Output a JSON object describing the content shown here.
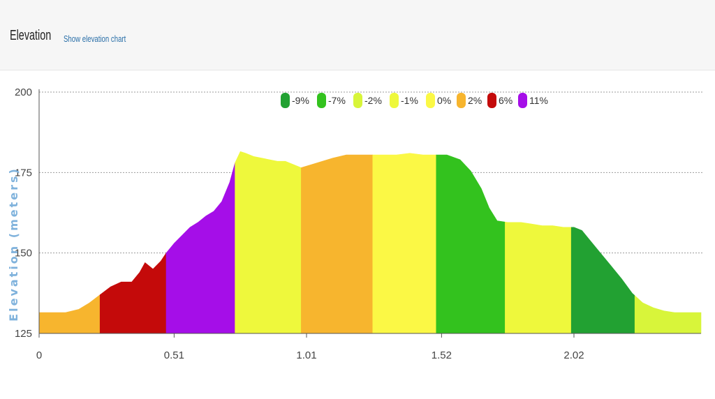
{
  "header": {
    "title": "Elevation",
    "show_chart_link": "Show elevation chart"
  },
  "chart_data": {
    "type": "area",
    "ylabel": "Elevation (meters)",
    "ylim": [
      125,
      200
    ],
    "yticks": [
      125,
      150,
      175,
      200
    ],
    "xlim": [
      0,
      2.5
    ],
    "xtick_labels": [
      "0",
      "0.51",
      "1.01",
      "1.52",
      "2.02"
    ],
    "xtick_values": [
      0,
      0.51,
      1.01,
      1.52,
      2.02
    ],
    "grid": true,
    "legend_position": "top-center",
    "legend": [
      {
        "label": "-9%",
        "color": "#22a132"
      },
      {
        "label": "-7%",
        "color": "#33c21e"
      },
      {
        "label": "-2%",
        "color": "#d8f53a"
      },
      {
        "label": "-1%",
        "color": "#eef83c"
      },
      {
        "label": "0%",
        "color": "#fbf845"
      },
      {
        "label": "2%",
        "color": "#f7b52e"
      },
      {
        "label": "6%",
        "color": "#c40a0a"
      },
      {
        "label": "11%",
        "color": "#a50ee8"
      }
    ],
    "profile": [
      [
        0.0,
        131.5
      ],
      [
        0.1,
        131.5
      ],
      [
        0.15,
        132.5
      ],
      [
        0.19,
        134.5
      ],
      [
        0.23,
        137
      ],
      [
        0.27,
        139.5
      ],
      [
        0.31,
        141
      ],
      [
        0.35,
        141
      ],
      [
        0.38,
        144
      ],
      [
        0.4,
        147
      ],
      [
        0.43,
        145
      ],
      [
        0.46,
        147.5
      ],
      [
        0.48,
        150
      ],
      [
        0.51,
        153
      ],
      [
        0.54,
        155.5
      ],
      [
        0.57,
        158
      ],
      [
        0.6,
        159.5
      ],
      [
        0.63,
        161.5
      ],
      [
        0.66,
        163
      ],
      [
        0.69,
        166
      ],
      [
        0.72,
        172
      ],
      [
        0.74,
        178
      ],
      [
        0.76,
        181.5
      ],
      [
        0.78,
        181
      ],
      [
        0.81,
        180
      ],
      [
        0.84,
        179.5
      ],
      [
        0.87,
        179
      ],
      [
        0.9,
        178.5
      ],
      [
        0.93,
        178.5
      ],
      [
        0.96,
        177.5
      ],
      [
        0.99,
        176.5
      ],
      [
        1.03,
        177.5
      ],
      [
        1.07,
        178.5
      ],
      [
        1.11,
        179.5
      ],
      [
        1.16,
        180.5
      ],
      [
        1.2,
        180.5
      ],
      [
        1.26,
        180.5
      ],
      [
        1.3,
        180.5
      ],
      [
        1.35,
        180.5
      ],
      [
        1.4,
        181
      ],
      [
        1.45,
        180.5
      ],
      [
        1.5,
        180.5
      ],
      [
        1.54,
        180.5
      ],
      [
        1.59,
        179
      ],
      [
        1.63,
        175.5
      ],
      [
        1.67,
        170
      ],
      [
        1.7,
        164
      ],
      [
        1.73,
        160
      ],
      [
        1.77,
        159.5
      ],
      [
        1.82,
        159.5
      ],
      [
        1.86,
        159
      ],
      [
        1.9,
        158.5
      ],
      [
        1.94,
        158.5
      ],
      [
        1.98,
        158
      ],
      [
        2.02,
        158
      ],
      [
        2.05,
        157
      ],
      [
        2.08,
        154
      ],
      [
        2.12,
        150
      ],
      [
        2.16,
        146
      ],
      [
        2.2,
        142
      ],
      [
        2.24,
        137.5
      ],
      [
        2.28,
        134.5
      ],
      [
        2.32,
        133
      ],
      [
        2.36,
        132
      ],
      [
        2.4,
        131.5
      ],
      [
        2.44,
        131.5
      ],
      [
        2.5,
        131.5
      ]
    ],
    "segments": [
      {
        "x0": 0.0,
        "x1": 0.23,
        "grade": "2%",
        "color": "#f7b52e"
      },
      {
        "x0": 0.23,
        "x1": 0.48,
        "grade": "6%",
        "color": "#c40a0a"
      },
      {
        "x0": 0.48,
        "x1": 0.74,
        "grade": "11%",
        "color": "#a50ee8"
      },
      {
        "x0": 0.74,
        "x1": 0.99,
        "grade": "-1%",
        "color": "#eef83c"
      },
      {
        "x0": 0.99,
        "x1": 1.26,
        "grade": "2%",
        "color": "#f7b52e"
      },
      {
        "x0": 1.26,
        "x1": 1.5,
        "grade": "0%",
        "color": "#fbf845"
      },
      {
        "x0": 1.5,
        "x1": 1.76,
        "grade": "-7%",
        "color": "#33c21e"
      },
      {
        "x0": 1.76,
        "x1": 2.01,
        "grade": "-1%",
        "color": "#eef83c"
      },
      {
        "x0": 2.01,
        "x1": 2.25,
        "grade": "-9%",
        "color": "#22a132"
      },
      {
        "x0": 2.25,
        "x1": 2.5,
        "grade": "-2%",
        "color": "#d8f53a"
      }
    ]
  }
}
